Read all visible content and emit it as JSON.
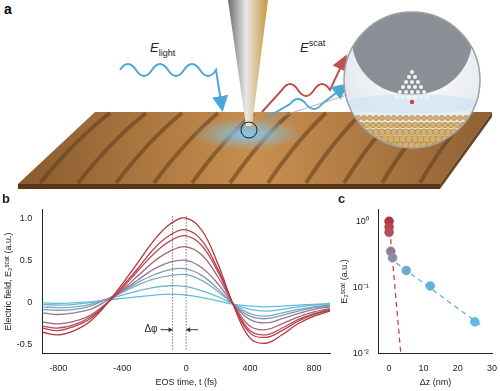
{
  "illustration": {
    "panel_label": "a",
    "incident": {
      "base": "E",
      "sub": "light"
    },
    "scattered": {
      "base": "E",
      "sup": "scat"
    }
  },
  "chart_data": [
    {
      "type": "line",
      "title": "b",
      "xlabel": "EOS time, t (fs)",
      "ylabel": "Electric field, E₂ˢᶜᵃᵗ (a.u.)",
      "x": [
        -900,
        -800,
        -700,
        -600,
        -500,
        -400,
        -300,
        -200,
        -100,
        0,
        100,
        200,
        300,
        400,
        500,
        600,
        700,
        800,
        900
      ],
      "series": [
        {
          "color": "#b5333d",
          "values": [
            -0.35,
            -0.38,
            -0.33,
            -0.22,
            -0.02,
            0.22,
            0.48,
            0.74,
            0.93,
            1.0,
            0.85,
            0.45,
            -0.05,
            -0.42,
            -0.48,
            -0.38,
            -0.25,
            -0.16,
            -0.1
          ]
        },
        {
          "color": "#b8414c",
          "values": [
            -0.3,
            -0.33,
            -0.28,
            -0.19,
            -0.02,
            0.19,
            0.41,
            0.64,
            0.8,
            0.86,
            0.73,
            0.39,
            -0.04,
            -0.36,
            -0.41,
            -0.33,
            -0.22,
            -0.14,
            -0.09
          ]
        },
        {
          "color": "#b34f5b",
          "values": [
            -0.28,
            -0.3,
            -0.26,
            -0.17,
            -0.02,
            0.17,
            0.38,
            0.58,
            0.73,
            0.79,
            0.67,
            0.36,
            -0.04,
            -0.33,
            -0.38,
            -0.3,
            -0.2,
            -0.13,
            -0.08
          ]
        },
        {
          "color": "#a46474",
          "values": [
            -0.23,
            -0.25,
            -0.22,
            -0.15,
            -0.01,
            0.15,
            0.32,
            0.49,
            0.61,
            0.66,
            0.56,
            0.3,
            -0.03,
            -0.28,
            -0.32,
            -0.25,
            -0.17,
            -0.11,
            -0.07
          ]
        },
        {
          "color": "#937b92",
          "values": [
            -0.12,
            -0.14,
            -0.12,
            -0.08,
            0.02,
            0.14,
            0.27,
            0.4,
            0.48,
            0.5,
            0.41,
            0.22,
            -0.03,
            -0.2,
            -0.24,
            -0.19,
            -0.13,
            -0.08,
            -0.05
          ]
        },
        {
          "color": "#8499ae",
          "values": [
            -0.08,
            -0.09,
            -0.08,
            -0.04,
            0.04,
            0.13,
            0.24,
            0.33,
            0.39,
            0.4,
            0.32,
            0.16,
            -0.03,
            -0.16,
            -0.19,
            -0.15,
            -0.1,
            -0.06,
            -0.04
          ]
        },
        {
          "color": "#78abc4",
          "values": [
            -0.05,
            -0.06,
            -0.05,
            -0.02,
            0.04,
            0.12,
            0.21,
            0.28,
            0.32,
            0.33,
            0.26,
            0.13,
            -0.02,
            -0.13,
            -0.16,
            -0.12,
            -0.08,
            -0.05,
            -0.03
          ]
        },
        {
          "color": "#6fb7d3",
          "values": [
            -0.02,
            -0.03,
            -0.02,
            0.0,
            0.04,
            0.09,
            0.14,
            0.18,
            0.2,
            0.19,
            0.14,
            0.07,
            -0.02,
            -0.08,
            -0.1,
            -0.08,
            -0.05,
            -0.03,
            -0.02
          ]
        },
        {
          "color": "#62bde0",
          "values": [
            0.0,
            -0.01,
            0.0,
            0.01,
            0.03,
            0.05,
            0.07,
            0.09,
            0.1,
            0.09,
            0.06,
            0.02,
            -0.02,
            -0.04,
            -0.05,
            -0.04,
            -0.03,
            -0.02,
            -0.01
          ]
        }
      ],
      "xlim": [
        -900,
        900
      ],
      "xticks": [
        -800,
        -400,
        0,
        400,
        800
      ],
      "ylim": [
        -0.6,
        1.1
      ],
      "yticks": [
        -0.5,
        0,
        0.5,
        {
          "value": 1,
          "label": "1.0"
        }
      ],
      "grid": false,
      "annotations": [
        {
          "text": "Δφ",
          "x": [
            -85,
            0
          ],
          "y": -0.32
        }
      ]
    },
    {
      "type": "scatter",
      "title": "c",
      "xlabel": "Δz (nm)",
      "ylabel": "E₂ˢᶜᵃᵗ (a.u.)",
      "series": [
        {
          "type": "scatter",
          "marker": "circle",
          "x": [
            0,
            0,
            0,
            0.5,
            1,
            5,
            12,
            25
          ],
          "values": [
            1.0,
            0.82,
            0.68,
            0.35,
            0.28,
            0.18,
            0.105,
            0.03
          ],
          "colors": [
            "#b5333d",
            "#b8414c",
            "#b34f5b",
            "#937b92",
            "#8a8ca8",
            "#6fa9cc",
            "#62b3d8",
            "#5abde0"
          ]
        },
        {
          "type": "line",
          "line_style": "dashed",
          "color": "#c0393f",
          "x": [
            0,
            3.4
          ],
          "values": [
            1.0,
            0.01
          ]
        },
        {
          "type": "line",
          "line_style": "dashed",
          "color": "#5fa8c8",
          "x": [
            0,
            27
          ],
          "values": [
            0.28,
            0.026
          ]
        }
      ],
      "xlim": [
        -3,
        30
      ],
      "xticks": [
        0,
        10,
        20,
        30
      ],
      "ylim": [
        0.01,
        1.5
      ],
      "yticks": [
        {
          "value": 0.01,
          "label": "10⁻²"
        },
        {
          "value": 0.1,
          "label": "10⁻¹"
        },
        {
          "value": 1,
          "label": "10⁰"
        }
      ],
      "log": "y",
      "grid": false
    }
  ]
}
